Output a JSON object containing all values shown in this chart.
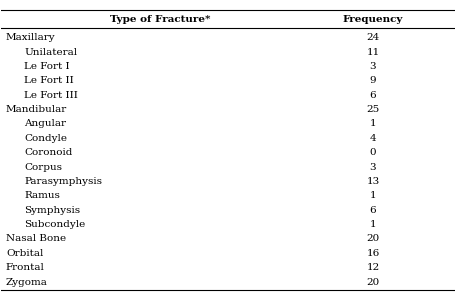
{
  "rows": [
    {
      "label": "Maxillary",
      "indent": 0,
      "value": "24"
    },
    {
      "label": "Unilateral",
      "indent": 1,
      "value": "11"
    },
    {
      "label": "Le Fort I",
      "indent": 1,
      "value": "3"
    },
    {
      "label": "Le Fort II",
      "indent": 1,
      "value": "9"
    },
    {
      "label": "Le Fort III",
      "indent": 1,
      "value": "6"
    },
    {
      "label": "Mandibular",
      "indent": 0,
      "value": "25"
    },
    {
      "label": "Angular",
      "indent": 1,
      "value": "1"
    },
    {
      "label": "Condyle",
      "indent": 1,
      "value": "4"
    },
    {
      "label": "Coronoid",
      "indent": 1,
      "value": "0"
    },
    {
      "label": "Corpus",
      "indent": 1,
      "value": "3"
    },
    {
      "label": "Parasymphysis",
      "indent": 1,
      "value": "13"
    },
    {
      "label": "Ramus",
      "indent": 1,
      "value": "1"
    },
    {
      "label": "Symphysis",
      "indent": 1,
      "value": "6"
    },
    {
      "label": "Subcondyle",
      "indent": 1,
      "value": "1"
    },
    {
      "label": "Nasal Bone",
      "indent": 0,
      "value": "20"
    },
    {
      "label": "Orbital",
      "indent": 0,
      "value": "16"
    },
    {
      "label": "Frontal",
      "indent": 0,
      "value": "12"
    },
    {
      "label": "Zygoma",
      "indent": 0,
      "value": "20"
    }
  ],
  "col1_header": "Type of Fracture*",
  "col2_header": "Frequency",
  "font_size": 7.5,
  "header_font_size": 7.5,
  "bg_color": "#ffffff",
  "text_color": "#000000",
  "indent_amt": 0.04
}
